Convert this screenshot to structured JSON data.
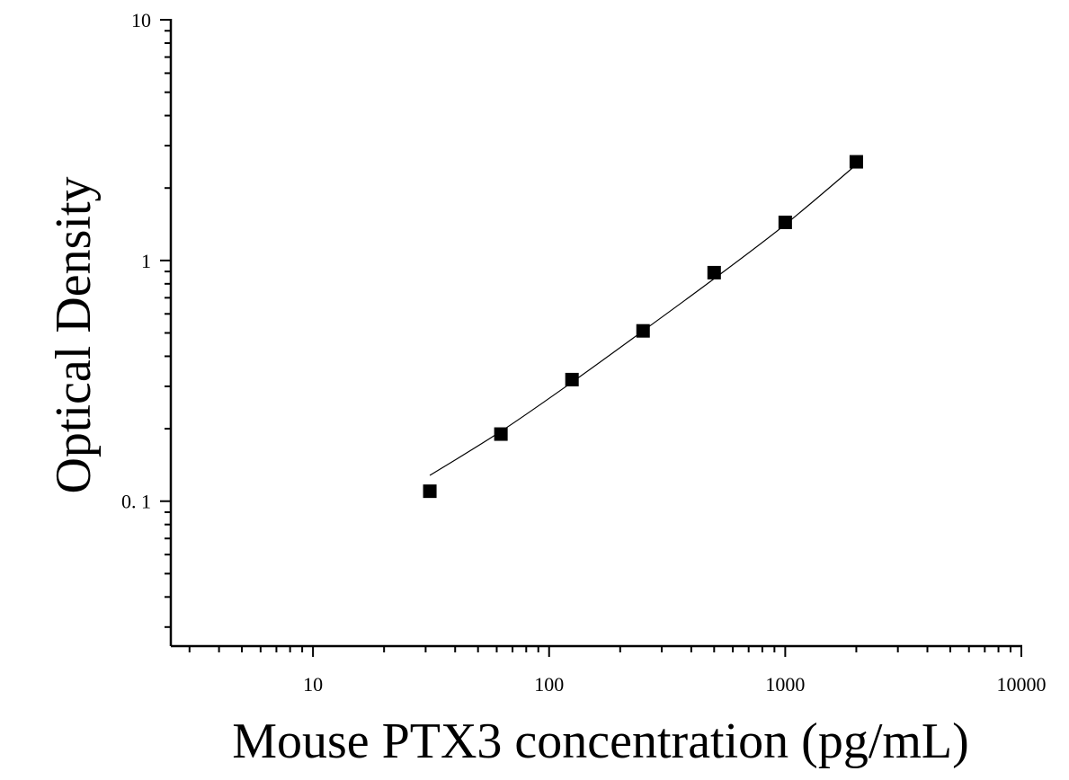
{
  "chart_data": {
    "type": "scatter",
    "title": "",
    "xlabel": "Mouse PTX3 concentration (pg/mL)",
    "ylabel": "Optical Density",
    "x_scale": "log",
    "y_scale": "log",
    "xlim": [
      2.5,
      10000
    ],
    "ylim": [
      0.025,
      10
    ],
    "x_ticks": [
      10,
      100,
      1000,
      10000
    ],
    "x_tick_labels": [
      "10",
      "100",
      "1000",
      "10000"
    ],
    "y_ticks": [
      0.1,
      1,
      10
    ],
    "y_tick_labels": [
      "0. 1",
      "1",
      "10"
    ],
    "grid": false,
    "legend": "none",
    "series": [
      {
        "marker": "square",
        "color": "#000000",
        "x": [
          31.25,
          62.5,
          125,
          250,
          500,
          1000,
          2000
        ],
        "y": [
          0.11,
          0.19,
          0.32,
          0.51,
          0.89,
          1.44,
          2.57
        ]
      }
    ],
    "fit_curve": {
      "color": "#000000",
      "x": [
        31.25,
        62.5,
        125,
        250,
        500,
        1000,
        2000
      ],
      "y": [
        0.128,
        0.195,
        0.312,
        0.51,
        0.84,
        1.41,
        2.5
      ]
    }
  }
}
